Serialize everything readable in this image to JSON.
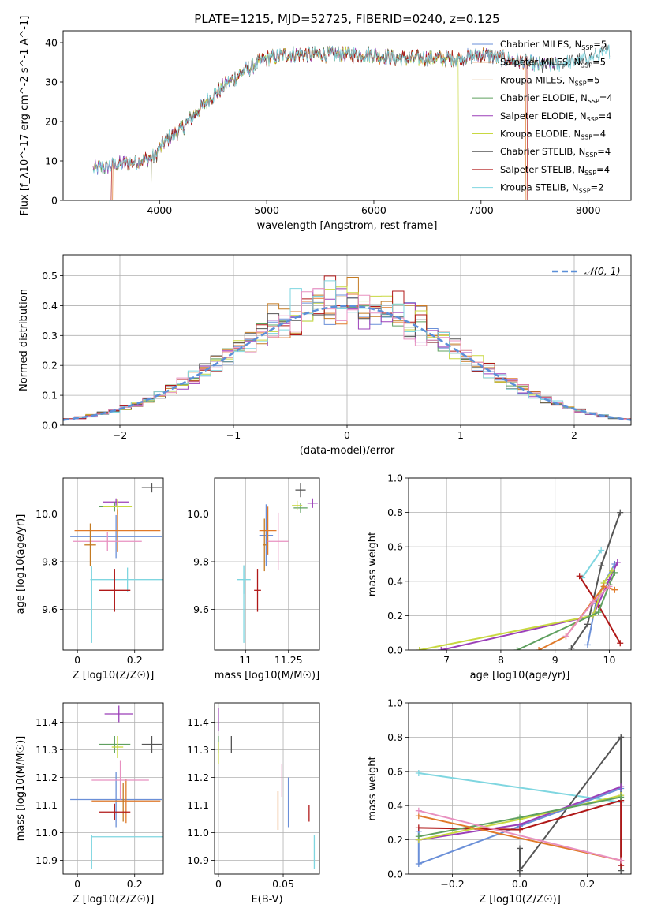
{
  "title": "PLATE=1215, MJD=52725, FIBERID=0240, z=0.125",
  "colors": {
    "c_miles": "#6a8fd8",
    "s_miles": "#e07a2a",
    "k_miles": "#c47a22",
    "c_elodie": "#5fa05f",
    "s_elodie": "#9b3fb8",
    "k_elodie": "#c8d840",
    "c_stelib": "#555555",
    "s_stelib": "#b01818",
    "k_stelib": "#7fd6e0",
    "pink": "#e890c0",
    "normal": "#5b8fd8"
  },
  "chart_data": [
    {
      "type": "line",
      "xlabel": "wavelength [Angstrom, rest frame]",
      "ylabel": "Flux [f_λ10^-17 erg cm^-2 s^-1 A^-1]",
      "xlim": [
        3100,
        8400
      ],
      "ylim": [
        0,
        43
      ],
      "xticks": [
        4000,
        5000,
        6000,
        7000,
        8000
      ],
      "yticks": [
        0,
        10,
        20,
        30,
        40
      ],
      "legend": "upper-right",
      "series": [
        {
          "name": "Chabrier MILES, N",
          "sub": "SSP",
          "suffix": "=5",
          "color": "#6a8fd8"
        },
        {
          "name": "Salpeter MILES, N",
          "sub": "SSP",
          "suffix": "=5",
          "color": "#e07a2a"
        },
        {
          "name": "Kroupa MILES, N",
          "sub": "SSP",
          "suffix": "=5",
          "color": "#c47a22"
        },
        {
          "name": "Chabrier ELODIE, N",
          "sub": "SSP",
          "suffix": "=4",
          "color": "#5fa05f"
        },
        {
          "name": "Salpeter ELODIE, N",
          "sub": "SSP",
          "suffix": "=4",
          "color": "#9b3fb8"
        },
        {
          "name": "Kroupa ELODIE, N",
          "sub": "SSP",
          "suffix": "=4",
          "color": "#c8d840"
        },
        {
          "name": "Chabrier STELIB, N",
          "sub": "SSP",
          "suffix": "=4",
          "color": "#555555"
        },
        {
          "name": "Salpeter STELIB, N",
          "sub": "SSP",
          "suffix": "=4",
          "color": "#b01818"
        },
        {
          "name": "Kroupa STELIB, N",
          "sub": "SSP",
          "suffix": "=2",
          "color": "#7fd6e0"
        }
      ],
      "continuum": {
        "x": [
          3400,
          3600,
          3800,
          3950,
          4050,
          4200,
          4400,
          4600,
          4800,
          5000,
          5200,
          5400,
          5600,
          5800,
          6000,
          6200,
          6400,
          6600,
          6800,
          7000,
          7200,
          7400,
          7600,
          8000,
          8200
        ],
        "y": [
          8,
          9,
          10,
          11,
          15,
          18,
          24,
          29,
          33,
          36,
          37,
          37,
          37,
          37,
          37,
          36,
          36,
          36,
          36,
          37,
          36,
          35,
          34,
          36,
          38
        ]
      }
    },
    {
      "type": "bar",
      "subtype": "step-histogram",
      "xlabel": "(data-model)/error",
      "ylabel": "Normed distribution",
      "xlim": [
        -2.5,
        2.5
      ],
      "ylim": [
        0,
        0.57
      ],
      "xticks": [
        -2,
        -1,
        0,
        1,
        2
      ],
      "yticks": [
        0.0,
        0.1,
        0.2,
        0.3,
        0.4,
        0.5
      ],
      "legend": "upper-right",
      "legend_label": "𝒩(0, 1)",
      "bin_width": 0.1
    },
    {
      "type": "scatter",
      "xlabel": "Z [log10(Z/Z☉)]",
      "ylabel": "age  [log10(age/yr)]",
      "xlim": [
        -0.05,
        0.3
      ],
      "ylim": [
        9.43,
        10.15
      ],
      "xticks": [
        0.0,
        0.2
      ],
      "yticks": [
        9.6,
        9.8,
        10.0
      ],
      "points": [
        {
          "x": 0.26,
          "xerr": 0.035,
          "y": 10.11,
          "yerr": 0.02,
          "color": "#555555"
        },
        {
          "x": 0.135,
          "xerr": 0.045,
          "y": 10.05,
          "yerr": 0.015,
          "color": "#9b3fb8"
        },
        {
          "x": 0.13,
          "xerr": 0.055,
          "y": 10.03,
          "yerr": 0.02,
          "color": "#5fa05f"
        },
        {
          "x": 0.14,
          "xerr": 0.05,
          "y": 10.03,
          "yerr": 0.03,
          "color": "#c8d840"
        },
        {
          "x": 0.135,
          "xerr": 0.16,
          "y": 9.905,
          "yerr": 0.09,
          "color": "#6a8fd8"
        },
        {
          "x": 0.14,
          "xerr": 0.15,
          "y": 9.93,
          "yerr": 0.09,
          "color": "#e07a2a"
        },
        {
          "x": 0.105,
          "xerr": 0.12,
          "y": 9.885,
          "yerr": 0.04,
          "color": "#e890c0"
        },
        {
          "x": 0.045,
          "xerr": 0.02,
          "y": 9.87,
          "yerr": 0.09,
          "color": "#c47a22"
        },
        {
          "x": 0.175,
          "xerr": 0.13,
          "y": 9.725,
          "yerr": 0.05,
          "color": "#7fd6e0"
        },
        {
          "x": 0.05,
          "xerr": 0.0,
          "y": 9.62,
          "yerr": 0.16,
          "color": "#7fd6e0"
        },
        {
          "x": 0.13,
          "xerr": 0.055,
          "y": 9.68,
          "yerr": 0.09,
          "color": "#b01818"
        }
      ]
    },
    {
      "type": "scatter",
      "xlabel": "mass [log10(M/M☉)]",
      "ylabel": "",
      "xlim": [
        10.82,
        11.43
      ],
      "ylim": [
        9.43,
        10.15
      ],
      "xticks": [
        11.0,
        11.25
      ],
      "yticks": [
        9.6,
        9.8,
        10.0
      ],
      "points": [
        {
          "x": 11.32,
          "xerr": 0.03,
          "y": 10.1,
          "yerr": 0.03,
          "color": "#555555"
        },
        {
          "x": 11.39,
          "xerr": 0.03,
          "y": 10.045,
          "yerr": 0.02,
          "color": "#9b3fb8"
        },
        {
          "x": 11.32,
          "xerr": 0.04,
          "y": 10.025,
          "yerr": 0.02,
          "color": "#5fa05f"
        },
        {
          "x": 11.3,
          "xerr": 0.03,
          "y": 10.035,
          "yerr": 0.02,
          "color": "#c8d840"
        },
        {
          "x": 11.12,
          "xerr": 0.04,
          "y": 9.91,
          "yerr": 0.13,
          "color": "#6a8fd8"
        },
        {
          "x": 11.13,
          "xerr": 0.05,
          "y": 9.93,
          "yerr": 0.1,
          "color": "#e07a2a"
        },
        {
          "x": 11.19,
          "xerr": 0.06,
          "y": 9.885,
          "yerr": 0.12,
          "color": "#e890c0"
        },
        {
          "x": 11.11,
          "xerr": 0.01,
          "y": 9.87,
          "yerr": 0.11,
          "color": "#c47a22"
        },
        {
          "x": 10.99,
          "xerr": 0.04,
          "y": 9.725,
          "yerr": 0.06,
          "color": "#7fd6e0"
        },
        {
          "x": 10.99,
          "xerr": 0.0,
          "y": 9.62,
          "yerr": 0.16,
          "color": "#7fd6e0"
        },
        {
          "x": 11.07,
          "xerr": 0.02,
          "y": 9.68,
          "yerr": 0.09,
          "color": "#b01818"
        }
      ]
    },
    {
      "type": "line",
      "xlabel": "age  [log10(age/yr)]",
      "ylabel": "mass weight",
      "xlim": [
        6.3,
        10.4
      ],
      "ylim": [
        0,
        1.0
      ],
      "xticks": [
        7,
        8,
        9,
        10
      ],
      "yticks": [
        0.0,
        0.2,
        0.4,
        0.6,
        0.8,
        1.0
      ],
      "series": [
        {
          "color": "#555555",
          "x": [
            9.3,
            9.6,
            9.85,
            10.2
          ],
          "y": [
            0.01,
            0.15,
            0.49,
            0.8
          ]
        },
        {
          "color": "#7fd6e0",
          "x": [
            9.5,
            9.85
          ],
          "y": [
            0.42,
            0.58
          ]
        },
        {
          "color": "#6a8fd8",
          "x": [
            9.6,
            9.75,
            9.9,
            10.1
          ],
          "y": [
            0.03,
            0.27,
            0.39,
            0.5
          ]
        },
        {
          "color": "#b01818",
          "x": [
            9.45,
            9.8,
            10.2
          ],
          "y": [
            0.43,
            0.26,
            0.04
          ]
        },
        {
          "color": "#9b3fb8",
          "x": [
            6.9,
            9.7,
            10.0,
            10.15
          ],
          "y": [
            0.0,
            0.2,
            0.41,
            0.51
          ]
        },
        {
          "color": "#c8d840",
          "x": [
            6.5,
            9.7,
            9.9,
            10.05
          ],
          "y": [
            0.0,
            0.2,
            0.39,
            0.46
          ]
        },
        {
          "color": "#5fa05f",
          "x": [
            8.3,
            9.8,
            10.0,
            10.1
          ],
          "y": [
            0.0,
            0.22,
            0.38,
            0.45
          ]
        },
        {
          "color": "#e07a2a",
          "x": [
            8.7,
            9.2,
            9.9,
            10.1
          ],
          "y": [
            0.0,
            0.08,
            0.37,
            0.35
          ]
        },
        {
          "color": "#e890c0",
          "x": [
            9.2,
            9.7,
            10.0
          ],
          "y": [
            0.08,
            0.28,
            0.37
          ]
        }
      ]
    },
    {
      "type": "scatter",
      "xlabel": "Z [log10(Z/Z☉)]",
      "ylabel": "mass [log10(M/M☉)]",
      "xlim": [
        -0.05,
        0.3
      ],
      "ylim": [
        10.85,
        11.47
      ],
      "xticks": [
        0.0,
        0.2
      ],
      "yticks": [
        10.9,
        11.0,
        11.1,
        11.2,
        11.3,
        11.4
      ],
      "points": [
        {
          "x": 0.26,
          "xerr": 0.035,
          "y": 11.32,
          "yerr": 0.03,
          "color": "#555555"
        },
        {
          "x": 0.145,
          "xerr": 0.05,
          "y": 11.43,
          "yerr": 0.03,
          "color": "#9b3fb8"
        },
        {
          "x": 0.13,
          "xerr": 0.055,
          "y": 11.32,
          "yerr": 0.03,
          "color": "#5fa05f"
        },
        {
          "x": 0.14,
          "xerr": 0.02,
          "y": 11.31,
          "yerr": 0.04,
          "color": "#c8d840"
        },
        {
          "x": 0.135,
          "xerr": 0.16,
          "y": 11.12,
          "yerr": 0.1,
          "color": "#6a8fd8"
        },
        {
          "x": 0.17,
          "xerr": 0.12,
          "y": 11.115,
          "yerr": 0.08,
          "color": "#e07a2a"
        },
        {
          "x": 0.15,
          "xerr": 0.1,
          "y": 11.19,
          "yerr": 0.07,
          "color": "#e890c0"
        },
        {
          "x": 0.16,
          "xerr": 0.0,
          "y": 11.11,
          "yerr": 0.07,
          "color": "#c47a22"
        },
        {
          "x": 0.175,
          "xerr": 0.125,
          "y": 10.985,
          "yerr": 0.0,
          "color": "#7fd6e0"
        },
        {
          "x": 0.05,
          "xerr": 0.0,
          "y": 10.93,
          "yerr": 0.06,
          "color": "#7fd6e0"
        },
        {
          "x": 0.13,
          "xerr": 0.055,
          "y": 11.075,
          "yerr": 0.03,
          "color": "#b01818"
        }
      ]
    },
    {
      "type": "scatter",
      "xlabel": "E(B-V)",
      "ylabel": "",
      "xlim": [
        -0.003,
        0.078
      ],
      "ylim": [
        10.85,
        11.47
      ],
      "xticks": [
        0.0,
        0.05
      ],
      "yticks": [
        10.9,
        11.0,
        11.1,
        11.2,
        11.3,
        11.4
      ],
      "points": [
        {
          "x": 0.0,
          "xerr": 0.0,
          "y": 11.41,
          "yerr": 0.04,
          "color": "#9b3fb8"
        },
        {
          "x": 0.0,
          "xerr": 0.0,
          "y": 11.32,
          "yerr": 0.03,
          "color": "#5fa05f"
        },
        {
          "x": 0.0,
          "xerr": 0.0,
          "y": 11.29,
          "yerr": 0.04,
          "color": "#c8d840"
        },
        {
          "x": 0.01,
          "xerr": 0.0,
          "y": 11.32,
          "yerr": 0.03,
          "color": "#555555"
        },
        {
          "x": 0.049,
          "xerr": 0.0,
          "y": 11.19,
          "yerr": 0.06,
          "color": "#e890c0"
        },
        {
          "x": 0.046,
          "xerr": 0.0,
          "y": 11.08,
          "yerr": 0.07,
          "color": "#e07a2a"
        },
        {
          "x": 0.054,
          "xerr": 0.0,
          "y": 11.11,
          "yerr": 0.09,
          "color": "#6a8fd8"
        },
        {
          "x": 0.07,
          "xerr": 0.0,
          "y": 11.07,
          "yerr": 0.03,
          "color": "#b01818"
        },
        {
          "x": 0.074,
          "xerr": 0.0,
          "y": 10.93,
          "yerr": 0.06,
          "color": "#7fd6e0"
        }
      ]
    },
    {
      "type": "line",
      "xlabel": "Z [log10(Z/Z☉)]",
      "ylabel": "mass weight",
      "xlim": [
        -0.33,
        0.33
      ],
      "ylim": [
        0,
        1.0
      ],
      "xticks": [
        -0.2,
        0.0,
        0.2
      ],
      "yticks": [
        0.0,
        0.2,
        0.4,
        0.6,
        0.8,
        1.0
      ],
      "series": [
        {
          "color": "#7fd6e0",
          "x": [
            -0.3,
            0.3
          ],
          "y": [
            0.59,
            0.42
          ]
        },
        {
          "color": "#555555",
          "x": [
            0.0,
            0.0,
            0.3,
            0.3
          ],
          "y": [
            0.15,
            0.02,
            0.8,
            0.02
          ]
        },
        {
          "color": "#6a8fd8",
          "x": [
            -0.3,
            -0.3,
            0.0,
            0.3
          ],
          "y": [
            0.25,
            0.06,
            0.28,
            0.5
          ]
        },
        {
          "color": "#9b3fb8",
          "x": [
            -0.3,
            0.0,
            0.3
          ],
          "y": [
            0.2,
            0.29,
            0.51
          ]
        },
        {
          "color": "#b01818",
          "x": [
            -0.3,
            0.0,
            0.3,
            0.3
          ],
          "y": [
            0.27,
            0.26,
            0.43,
            0.05
          ]
        },
        {
          "color": "#c8d840",
          "x": [
            -0.3,
            0.0,
            0.3
          ],
          "y": [
            0.2,
            0.32,
            0.46
          ]
        },
        {
          "color": "#5fa05f",
          "x": [
            -0.3,
            0.0,
            0.3
          ],
          "y": [
            0.22,
            0.33,
            0.45
          ]
        },
        {
          "color": "#e07a2a",
          "x": [
            -0.3,
            0.3
          ],
          "y": [
            0.34,
            0.08
          ]
        },
        {
          "color": "#e890c0",
          "x": [
            -0.3,
            0.3
          ],
          "y": [
            0.37,
            0.08
          ]
        }
      ]
    }
  ]
}
